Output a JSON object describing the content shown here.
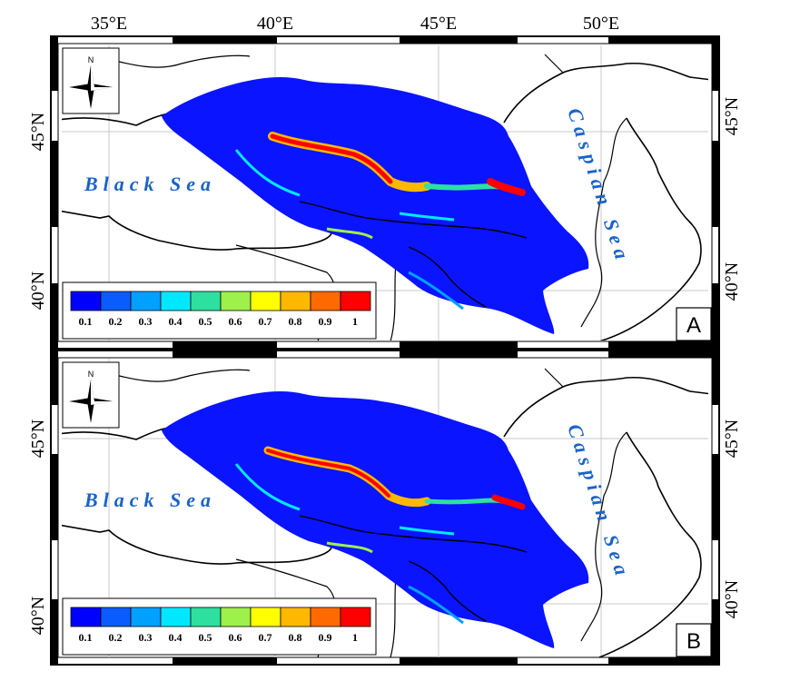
{
  "longitude_labels": [
    "35°E",
    "40°E",
    "45°E",
    "50°E"
  ],
  "latitude_labels": [
    "45°N",
    "40°N"
  ],
  "north_label": "N",
  "colorbar": {
    "labels": [
      "0.1",
      "0.2",
      "0.3",
      "0.4",
      "0.5",
      "0.6",
      "0.7",
      "0.8",
      "0.9",
      "1"
    ],
    "colors": [
      "#0000ff",
      "#0a5cff",
      "#00a0ff",
      "#00e8ff",
      "#2ee0a0",
      "#9ef04a",
      "#ffff00",
      "#ffb800",
      "#ff6a00",
      "#ff0000"
    ]
  },
  "region_color": "#0a14ff",
  "sea_labels": {
    "black_sea": "Black Sea",
    "caspian_sea": "Caspian Sea"
  },
  "panels": [
    {
      "id": "A",
      "label": "A"
    },
    {
      "id": "B",
      "label": "B"
    }
  ]
}
